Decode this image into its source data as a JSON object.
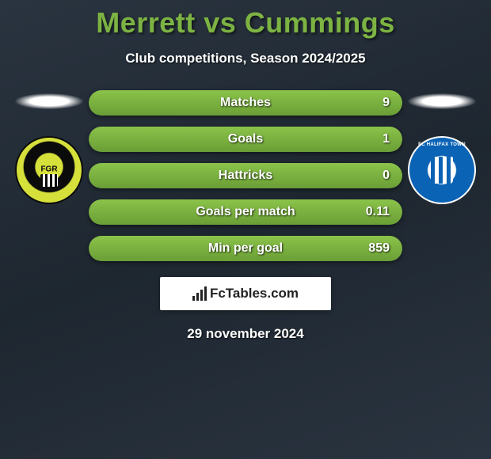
{
  "title": "Merrett vs Cummings",
  "subtitle": "Club competitions, Season 2024/2025",
  "date": "29 november 2024",
  "logo_text": "FcTables.com",
  "colors": {
    "accent_green": "#7cb342",
    "bar_green_top": "#8bc34a",
    "bar_green_bottom": "#6a9e36",
    "bar_grey_top": "#4a5866",
    "bar_grey_bottom": "#2e3945",
    "bg_dark": "#1e2730",
    "text": "#ffffff"
  },
  "badges": {
    "left": {
      "name": "Forest Green Rovers",
      "primary": "#d6e03a",
      "secondary": "#0b0b0b"
    },
    "right": {
      "name": "FC Halifax Town",
      "primary": "#0b63b5",
      "secondary": "#ffffff"
    }
  },
  "stats": [
    {
      "label": "Matches",
      "value": "9",
      "fill_pct": 100
    },
    {
      "label": "Goals",
      "value": "1",
      "fill_pct": 100
    },
    {
      "label": "Hattricks",
      "value": "0",
      "fill_pct": 100
    },
    {
      "label": "Goals per match",
      "value": "0.11",
      "fill_pct": 100
    },
    {
      "label": "Min per goal",
      "value": "859",
      "fill_pct": 100
    }
  ]
}
